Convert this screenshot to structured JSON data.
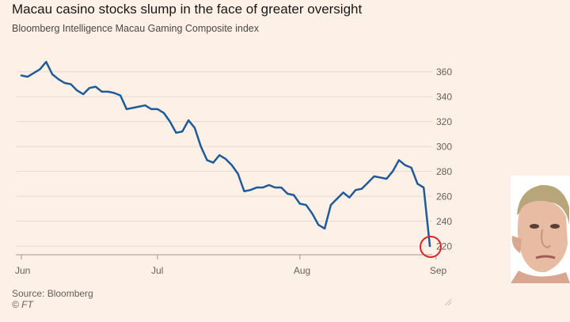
{
  "header": {
    "title": "Macau casino stocks slump in the face of greater oversight",
    "subtitle": "Bloomberg Intelligence Macau Gaming Composite index"
  },
  "footer": {
    "source": "Source: Bloomberg",
    "credit": "© FT"
  },
  "colors": {
    "line": "#1f5a99",
    "grid": "#e5dbd3",
    "axis": "#a09891",
    "marker": "#d62728"
  },
  "chart_data": {
    "type": "line",
    "title": "Macau casino stocks slump in the face of greater oversight",
    "subtitle": "Bloomberg Intelligence Macau Gaming Composite index",
    "xlabel": "",
    "ylabel": "",
    "x_ticks": [
      {
        "label": "Jun",
        "index": 0
      },
      {
        "label": "Jul",
        "index": 22
      },
      {
        "label": "Aug",
        "index": 45
      },
      {
        "label": "Sep",
        "index": 67
      }
    ],
    "y_ticks": [
      220,
      240,
      260,
      280,
      300,
      320,
      340,
      360
    ],
    "ylim": [
      213,
      370
    ],
    "y_axis_side": "right",
    "grid": true,
    "series": [
      {
        "values": [
          357,
          356,
          359,
          362,
          368,
          358,
          354,
          351,
          350,
          345,
          342,
          347,
          348,
          344,
          344,
          343,
          341,
          330,
          331,
          332,
          333,
          330,
          330,
          327,
          320,
          311,
          312,
          321,
          315,
          300,
          289,
          287,
          293,
          290,
          285,
          278,
          264,
          265,
          267,
          267,
          269,
          267,
          267,
          262,
          261,
          254,
          253,
          246,
          237,
          234,
          253,
          258,
          263,
          259,
          265,
          266,
          271,
          276,
          275,
          274,
          280,
          289,
          285,
          283,
          270,
          267,
          220
        ]
      }
    ],
    "highlight": {
      "index": 66,
      "value": 220,
      "marker": "circle"
    }
  }
}
